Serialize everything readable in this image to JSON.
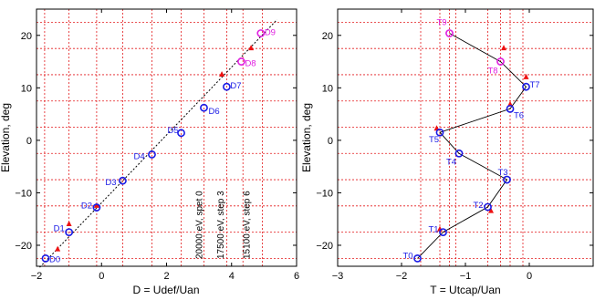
{
  "chart_data": [
    {
      "type": "scatter",
      "xlabel": "D = Udef/Uan",
      "ylabel": "Elevation, deg",
      "xlim": [
        -2,
        6
      ],
      "ylim": [
        -24,
        25
      ],
      "xticks": [
        -2,
        0,
        2,
        4,
        6
      ],
      "yticks": [
        -20,
        -10,
        0,
        10,
        20
      ],
      "grid_x": [
        -1.75,
        -1.0,
        -0.15,
        0.65,
        1.55,
        2.45,
        3.15,
        3.85,
        4.35,
        4.95
      ],
      "grid_y": [
        -22.5,
        -17.5,
        -12.5,
        -7.5,
        -2.5,
        2.5,
        7.5,
        12.5,
        17.5,
        22.5
      ],
      "fit_line": {
        "x": [
          -1.9,
          5.4
        ],
        "y": [
          -24.2,
          23.0
        ]
      },
      "points": [
        {
          "label": "D0",
          "x": -1.72,
          "y": -22.5,
          "color": "#1a1ae6"
        },
        {
          "label": "D1",
          "x": -1.0,
          "y": -17.5,
          "color": "#1a1ae6"
        },
        {
          "label": "D2",
          "x": -0.15,
          "y": -12.8,
          "color": "#1a1ae6"
        },
        {
          "label": "D3",
          "x": 0.65,
          "y": -7.7,
          "color": "#1a1ae6"
        },
        {
          "label": "D4",
          "x": 1.55,
          "y": -2.7,
          "color": "#1a1ae6"
        },
        {
          "label": "D5",
          "x": 2.45,
          "y": 1.4,
          "color": "#1a1ae6"
        },
        {
          "label": "D6",
          "x": 3.15,
          "y": 6.2,
          "color": "#1a1ae6"
        },
        {
          "label": "D7",
          "x": 3.85,
          "y": 10.2,
          "color": "#1a1ae6"
        },
        {
          "label": "D8",
          "x": 4.3,
          "y": 15.0,
          "color": "#e020e0"
        },
        {
          "label": "D9",
          "x": 4.9,
          "y": 20.4,
          "color": "#e020e0"
        }
      ],
      "markers": [
        {
          "x": -1.35,
          "y": -20.8
        },
        {
          "x": -1.0,
          "y": -16.0
        },
        {
          "x": -0.15,
          "y": -12.5
        },
        {
          "x": 3.7,
          "y": 12.5
        },
        {
          "x": 4.6,
          "y": 17.5
        }
      ],
      "vertical_annotations": [
        "20000 eV, spet 0",
        "17500 eV, step 3",
        "15100 eV, step 6"
      ]
    },
    {
      "type": "line",
      "xlabel": "T = Utcap/Uan",
      "ylabel": "Elevation, deg",
      "xlim": [
        -3,
        1
      ],
      "ylim": [
        -24,
        25
      ],
      "xticks": [
        -3,
        -2,
        -1,
        0
      ],
      "yticks": [
        -20,
        -10,
        0,
        10,
        20
      ],
      "grid_x": [
        -1.7,
        -1.4,
        -1.25,
        -1.15,
        -0.65,
        -0.45,
        -0.3,
        -0.1
      ],
      "grid_y": [
        -22.5,
        -17.5,
        -12.5,
        -7.5,
        -2.5,
        2.5,
        7.5,
        12.5,
        17.5,
        22.5
      ],
      "points": [
        {
          "label": "T0",
          "x": -1.75,
          "y": -22.5,
          "color": "#1a1ae6"
        },
        {
          "label": "T1",
          "x": -1.35,
          "y": -17.5,
          "color": "#1a1ae6"
        },
        {
          "label": "T2",
          "x": -0.65,
          "y": -12.7,
          "color": "#1a1ae6"
        },
        {
          "label": "T3",
          "x": -0.35,
          "y": -7.5,
          "color": "#1a1ae6"
        },
        {
          "label": "T4",
          "x": -1.1,
          "y": -2.5,
          "color": "#1a1ae6"
        },
        {
          "label": "T5",
          "x": -1.4,
          "y": 1.5,
          "color": "#1a1ae6"
        },
        {
          "label": "T6",
          "x": -0.3,
          "y": 6.0,
          "color": "#1a1ae6"
        },
        {
          "label": "T7",
          "x": -0.05,
          "y": 10.2,
          "color": "#1a1ae6"
        },
        {
          "label": "T8",
          "x": -0.45,
          "y": 15.0,
          "color": "#e020e0"
        },
        {
          "label": "T9",
          "x": -1.25,
          "y": 20.4,
          "color": "#e020e0"
        }
      ],
      "markers": [
        {
          "x": -1.4,
          "y": -17.0
        },
        {
          "x": -0.6,
          "y": -13.5
        },
        {
          "x": -1.45,
          "y": 2.2
        },
        {
          "x": -0.3,
          "y": 6.8
        },
        {
          "x": -0.05,
          "y": 12.0
        },
        {
          "x": -0.4,
          "y": 17.5
        }
      ]
    }
  ]
}
